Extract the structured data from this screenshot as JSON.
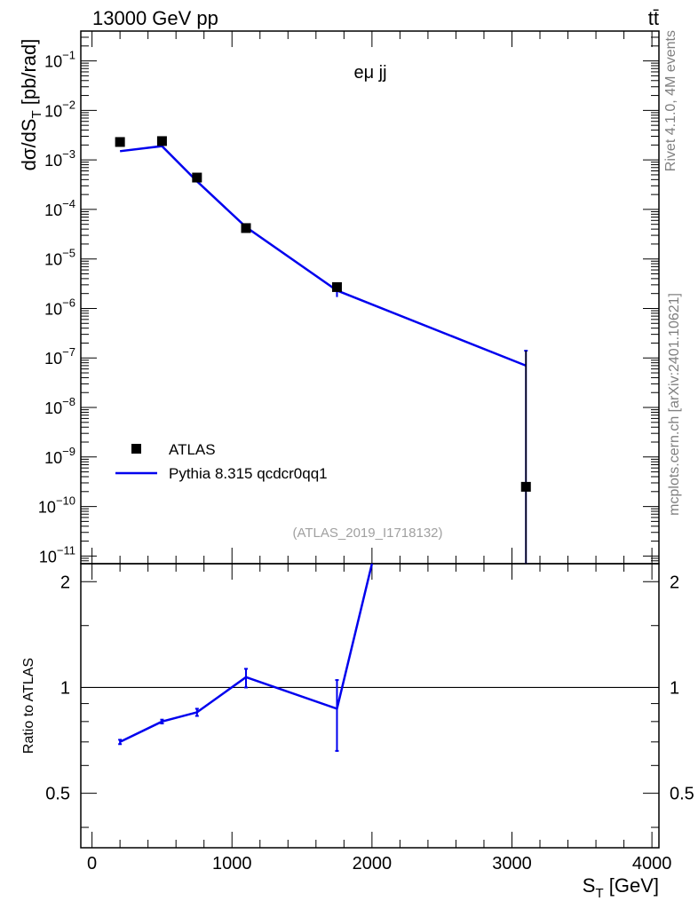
{
  "header": {
    "left": "13000 GeV pp",
    "right": "tt̄"
  },
  "side_labels": {
    "rivet": "Rivet 4.1.0,  4M events",
    "mcplots": "mcplots.cern.ch [arXiv:2401.10621]"
  },
  "chart_data": [
    {
      "type": "scatter",
      "panel": "main",
      "annotation": "eμ jj",
      "watermark": "(ATLAS_2019_I1718132)",
      "ylabel_main": "dσ/dS",
      "ylabel_sub": "T",
      "ylabel_tail": " [pb/rad]",
      "yscale": "log",
      "xlim": [
        -80,
        4050
      ],
      "ylim": [
        7e-12,
        0.4
      ],
      "legend_position": "lower-left",
      "ytick_exponents": [
        -11,
        -10,
        -9,
        -8,
        -7,
        -6,
        -5,
        -4,
        -3,
        -2,
        -1
      ],
      "series": [
        {
          "name": "ATLAS",
          "kind": "points",
          "color": "#000000",
          "x": [
            200,
            500,
            750,
            1100,
            1750,
            3100
          ],
          "y": [
            0.0023,
            0.0024,
            0.00044,
            4.2e-05,
            2.7e-06,
            2.5e-10
          ],
          "yerr_low": [
            0.0021,
            0.0023,
            0.00041,
            3.95e-05,
            2.2e-06,
            1e-12
          ],
          "yerr_high": [
            0.0025,
            0.0025,
            0.00047,
            4.45e-05,
            3.2e-06,
            1.4e-07
          ]
        },
        {
          "name": "Pythia 8.315 qcdcr0qq1",
          "kind": "line",
          "color": "#0000ee",
          "x": [
            200,
            500,
            750,
            1100,
            1750,
            3100
          ],
          "y": [
            0.0015,
            0.0019,
            0.00037,
            4.4e-05,
            2.3e-06,
            7e-08
          ],
          "yerr_low": [
            0.0015,
            0.0019,
            0.00035,
            4.3e-05,
            1.7e-06,
            1e-12
          ],
          "yerr_high": [
            0.0015,
            0.0019,
            0.00039,
            4.5e-05,
            2.9e-06,
            1.4e-07
          ]
        }
      ]
    },
    {
      "type": "line",
      "panel": "ratio",
      "ylabel": "Ratio to ATLAS",
      "xlabel_main": "S",
      "xlabel_sub": "T",
      "xlabel_tail": " [GeV]",
      "xlim": [
        -80,
        4050
      ],
      "ylim": [
        0.35,
        2.25
      ],
      "xticks": [
        0,
        1000,
        2000,
        3000,
        4000
      ],
      "xtick_labels": [
        "0",
        "1000",
        "2000",
        "3000",
        "4000"
      ],
      "yticks": [
        0.5,
        1,
        2
      ],
      "ytick_labels": [
        "0.5",
        "1",
        "2"
      ],
      "reference_line": 1,
      "series": [
        {
          "name": "Pythia 8.315 qcdcr0qq1",
          "color": "#0000ee",
          "x": [
            200,
            500,
            750,
            1100,
            1750,
            2000
          ],
          "y": [
            0.7,
            0.8,
            0.85,
            1.07,
            0.87,
            2.3
          ],
          "yerr_low": [
            0.69,
            0.79,
            0.83,
            1.0,
            0.66,
            2.3
          ],
          "yerr_high": [
            0.71,
            0.81,
            0.87,
            1.13,
            1.05,
            2.3
          ]
        }
      ]
    }
  ]
}
